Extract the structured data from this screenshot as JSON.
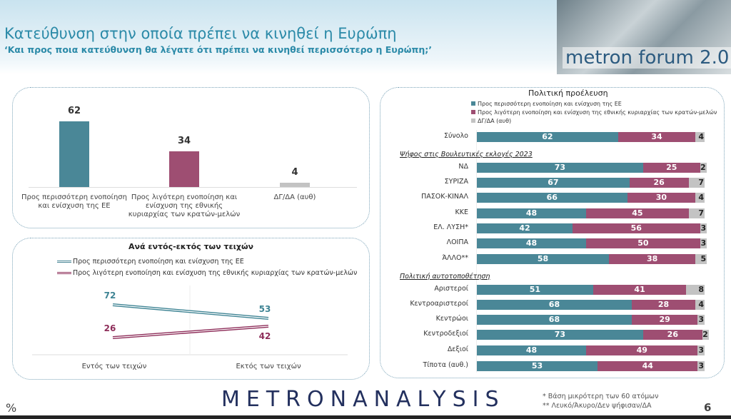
{
  "header": {
    "title": "Κατεύθυνση στην οποία πρέπει να κινηθεί η Ευρώπη",
    "subtitle": "‘Και προς ποια κατεύθυνση θα λέγατε ότι πρέπει να κινηθεί περισσότερο η Ευρώπη;’",
    "brand": "metron forum 2.0"
  },
  "colors": {
    "more": "#4a8797",
    "less": "#9e4e72",
    "dk": "#c3c3c3"
  },
  "chart_data": [
    {
      "type": "bar",
      "categories": [
        "Προς περισσότερη ενοποίηση και ενίσχυση της ΕΕ",
        "Προς λιγότερη ενοποίηση και ενίσχυση της εθνικής κυριαρχίας των κρατών-μελών",
        "ΔΓ/ΔΑ (αυθ)"
      ],
      "values": [
        62,
        34,
        4
      ]
    },
    {
      "type": "line",
      "title": "Ανά εντός-εκτός των τειχών",
      "categories": [
        "Εντός των τειχών",
        "Εκτός των τειχών"
      ],
      "series": [
        {
          "name": "Προς περισσότερη ενοποίηση και ενίσχυση της ΕΕ",
          "values": [
            72,
            53
          ]
        },
        {
          "name": "Προς λιγότερη ενοποίηση και ενίσχυση της εθνικής κυριαρχίας των κρατών-μελών",
          "values": [
            26,
            42
          ]
        }
      ]
    },
    {
      "type": "bar",
      "stacked": true,
      "orientation": "horizontal",
      "title": "Πολιτική προέλευση",
      "legend": [
        "Προς περισσότερη ενοποίηση και ενίσχυση της ΕΕ",
        "Προς λιγότερη ενοποίηση και ενίσχυση της εθνικής κυριαρχίας των κρατών-μελών",
        "ΔΓ/ΔΑ (αυθ)"
      ],
      "sections": [
        {
          "heading": "",
          "rows": [
            {
              "label": "Σύνολο",
              "values": [
                62,
                34,
                4
              ]
            }
          ]
        },
        {
          "heading": "Ψήφος στις Βουλευτικές εκλογές 2023",
          "rows": [
            {
              "label": "ΝΔ",
              "values": [
                73,
                25,
                2
              ]
            },
            {
              "label": "ΣΥΡΙΖΑ",
              "values": [
                67,
                26,
                7
              ]
            },
            {
              "label": "ΠΑΣΟΚ-ΚΙΝΑΛ",
              "values": [
                66,
                30,
                4
              ]
            },
            {
              "label": "ΚΚΕ",
              "values": [
                48,
                45,
                7
              ]
            },
            {
              "label": "ΕΛ. ΛΥΣΗ*",
              "values": [
                42,
                56,
                3
              ]
            },
            {
              "label": "ΛΟΙΠΑ",
              "values": [
                48,
                50,
                3
              ]
            },
            {
              "label": "ΆΛΛΟ**",
              "values": [
                58,
                38,
                5
              ]
            }
          ]
        },
        {
          "heading": "Πολιτική αυτοτοποθέτηση",
          "rows": [
            {
              "label": "Αριστεροί",
              "values": [
                51,
                41,
                8
              ]
            },
            {
              "label": "Κεντροαριστεροί",
              "values": [
                68,
                28,
                4
              ]
            },
            {
              "label": "Κεντρώοι",
              "values": [
                68,
                29,
                3
              ]
            },
            {
              "label": "Κεντροδεξιοί",
              "values": [
                73,
                26,
                2
              ]
            },
            {
              "label": "Δεξιοί",
              "values": [
                48,
                49,
                3
              ]
            },
            {
              "label": "Τίποτα (αυθ.)",
              "values": [
                53,
                44,
                3
              ]
            }
          ]
        }
      ]
    }
  ],
  "footer": {
    "unit": "%",
    "logo": "METRONANALYSIS",
    "note1": "*  Βάση μικρότερη των 60 ατόμων",
    "note2": "** Λευκό/Άκυρο/Δεν ψήφισαν/ΔΑ",
    "page": "6"
  }
}
